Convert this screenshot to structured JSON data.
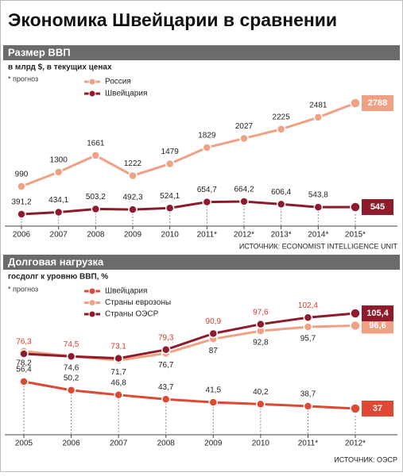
{
  "header": {
    "title": "Экономика Швейцарии в сравнении"
  },
  "chart_data": [
    {
      "type": "line",
      "title": "Размер ВВП",
      "subtitle": "в млрд $, в текущих ценах",
      "note": "* прогноз",
      "source": "ИСТОЧНИК: ECONOMIST INTELLIGENCE UNIT",
      "categories": [
        "2006",
        "2007",
        "2008",
        "2009",
        "2010",
        "2011*",
        "2012*",
        "2013*",
        "2014*",
        "2015*"
      ],
      "series": [
        {
          "name": "Россия",
          "color": "#f0a183",
          "values": [
            990,
            1300,
            1661,
            1222,
            1479,
            1829,
            2027,
            2225,
            2481,
            2788
          ]
        },
        {
          "name": "Швейцария",
          "color": "#8e1b2c",
          "values": [
            391.2,
            434.1,
            503.2,
            492.3,
            524.1,
            654.7,
            664.2,
            606.4,
            543.8,
            545
          ],
          "value_labels": [
            "391,2",
            "434,1",
            "503,2",
            "492,3",
            "524,1",
            "654,7",
            "664,2",
            "606,4",
            "543,8",
            "545"
          ]
        }
      ]
    },
    {
      "type": "line",
      "title": "Долговая нагрузка",
      "subtitle": "госдолг к уровню ВВП, %",
      "note": "* прогноз",
      "source": "ИСТОЧНИК: ОЭСР",
      "categories": [
        "2005",
        "2006",
        "2007",
        "2008",
        "2009",
        "2010",
        "2011*",
        "2012*"
      ],
      "series": [
        {
          "name": "Швейцария",
          "color": "#dc4a34",
          "values": [
            56.4,
            50.2,
            46.8,
            43.7,
            41.5,
            40.2,
            38.7,
            37
          ],
          "value_labels": [
            "56,4",
            "50,2",
            "46,8",
            "43,7",
            "41,5",
            "40,2",
            "38,7",
            "37"
          ]
        },
        {
          "name": "Страны еврозоны",
          "color": "#f0a183",
          "values": [
            78.2,
            74.6,
            71.7,
            76.7,
            87,
            92.8,
            95.7,
            96.6
          ],
          "value_labels": [
            "78,2",
            "74,6",
            "71,7",
            "76,7",
            "87",
            "92,8",
            "95,7",
            "96,6"
          ]
        },
        {
          "name": "Страны ОЭСР",
          "color": "#8e1b2c",
          "values": [
            76.3,
            74.5,
            73.1,
            79.3,
            90.9,
            97.6,
            102.4,
            105.4
          ],
          "value_labels": [
            "76,3",
            "74,5",
            "73,1",
            "79,3",
            "90,9",
            "97,6",
            "102,4",
            "105,4"
          ]
        }
      ]
    }
  ]
}
